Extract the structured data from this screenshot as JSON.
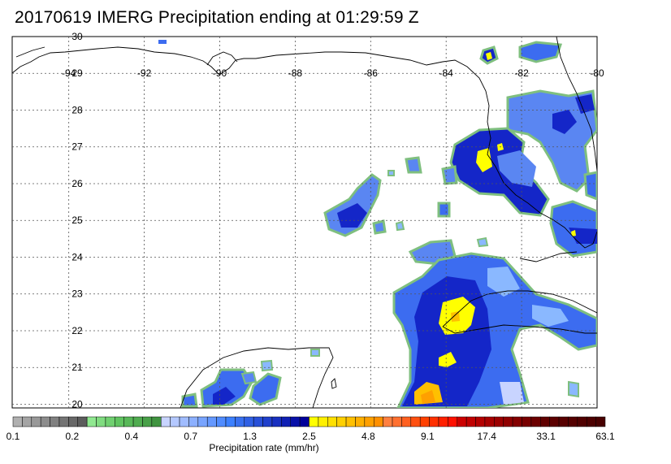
{
  "map": {
    "title": "20170619 IMERG Precipitation ending at 01:29:59 Z",
    "lon_labels": [
      "-94",
      "-92",
      "-90",
      "-88",
      "-86",
      "-84",
      "-82",
      "-80"
    ],
    "lat_labels": [
      "30",
      "29",
      "28",
      "27",
      "26",
      "25",
      "24",
      "23",
      "22",
      "21",
      "20"
    ],
    "extent": {
      "lon_min": -95.5,
      "lon_max": -80,
      "lat_min": 19.9,
      "lat_max": 30
    },
    "colorbar": {
      "title": "Precipitation rate (mm/hr)",
      "tick_labels": [
        "0.1",
        "0.2",
        "0.4",
        "0.7",
        "1.3",
        "2.5",
        "4.8",
        "9.1",
        "17.4",
        "33.1",
        "63.1"
      ],
      "colors": [
        "#b0b0b0",
        "#a4a4a4",
        "#989898",
        "#8c8c8c",
        "#808080",
        "#747474",
        "#686868",
        "#5c5c5c",
        "#90e890",
        "#80dc80",
        "#70d070",
        "#60c460",
        "#58b858",
        "#50ac50",
        "#48a048",
        "#409440",
        "#c8d4ff",
        "#b4c8ff",
        "#a0bcff",
        "#8cb0ff",
        "#78a4ff",
        "#6498ff",
        "#508cff",
        "#3c80ff",
        "#3870f0",
        "#3060e4",
        "#2850d8",
        "#2040cc",
        "#1830c0",
        "#1020b4",
        "#0810a8",
        "#000099",
        "#ffff00",
        "#fff000",
        "#ffe000",
        "#ffd000",
        "#ffc000",
        "#ffb000",
        "#ffa000",
        "#ff9000",
        "#ff8040",
        "#ff7030",
        "#ff6020",
        "#ff5010",
        "#ff4000",
        "#ff3000",
        "#ff2000",
        "#ff1000",
        "#cc0000",
        "#c00000",
        "#b40000",
        "#a80000",
        "#9c0000",
        "#900000",
        "#840000",
        "#780000",
        "#6c0000",
        "#600000",
        "#5c0000",
        "#580000",
        "#540000",
        "#500000",
        "#4c0000",
        "#480000"
      ]
    },
    "precip_cells": [
      {
        "lon": -82.7,
        "lat": 29.5,
        "level": "blue"
      },
      {
        "lon": -82.2,
        "lat": 29.7,
        "level": "blue"
      },
      {
        "lon": -81.8,
        "lat": 29.8,
        "level": "blue"
      },
      {
        "lon": -82.8,
        "lat": 29.55,
        "level": "yellow"
      },
      {
        "lon": -81.3,
        "lat": 28.0,
        "level": "blue"
      },
      {
        "lon": -81.0,
        "lat": 27.5,
        "level": "blue"
      },
      {
        "lon": -80.6,
        "lat": 28.0,
        "level": "blue"
      },
      {
        "lon": -83.3,
        "lat": 26.8,
        "level": "navy"
      },
      {
        "lon": -82.5,
        "lat": 26.5,
        "level": "navy"
      },
      {
        "lon": -82.1,
        "lat": 26.2,
        "level": "blue"
      },
      {
        "lon": -83.2,
        "lat": 26.9,
        "level": "yellow"
      },
      {
        "lon": -81.5,
        "lat": 25.6,
        "level": "blue"
      },
      {
        "lon": -80.8,
        "lat": 24.9,
        "level": "blue"
      },
      {
        "lon": -80.5,
        "lat": 24.5,
        "level": "navy"
      },
      {
        "lon": -86.7,
        "lat": 25.2,
        "level": "blue"
      },
      {
        "lon": -86.2,
        "lat": 25.6,
        "level": "blue"
      },
      {
        "lon": -84.2,
        "lat": 24.1,
        "level": "blue"
      },
      {
        "lon": -83.6,
        "lat": 22.6,
        "level": "navy"
      },
      {
        "lon": -83.5,
        "lat": 21.5,
        "level": "navy"
      },
      {
        "lon": -83.0,
        "lat": 22.1,
        "level": "blue"
      },
      {
        "lon": -82.0,
        "lat": 22.4,
        "level": "blue"
      },
      {
        "lon": -81.2,
        "lat": 22.1,
        "level": "blue"
      },
      {
        "lon": -83.6,
        "lat": 22.4,
        "level": "yellow"
      },
      {
        "lon": -83.5,
        "lat": 21.1,
        "level": "yellow"
      },
      {
        "lon": -84.3,
        "lat": 20.2,
        "level": "orange"
      },
      {
        "lon": -90.8,
        "lat": 20.3,
        "level": "blue"
      },
      {
        "lon": -89.8,
        "lat": 20.6,
        "level": "blue"
      },
      {
        "lon": -88.9,
        "lat": 20.7,
        "level": "blue"
      },
      {
        "lon": -84.2,
        "lat": 20.6,
        "level": "navy"
      }
    ],
    "colors": {
      "outline_green": "#7fbf7f",
      "blue": "#3c6cf0",
      "navy": "#1426c8",
      "light": "#8ab8ff",
      "yellow": "#ffff00",
      "orange": "#ffaa00",
      "coast": "#000000",
      "grid": "#555555"
    }
  }
}
